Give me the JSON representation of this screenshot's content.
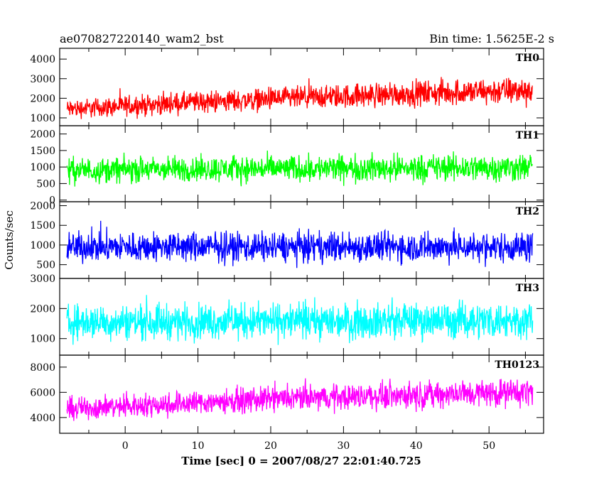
{
  "header": {
    "title": "ae070827220140_wam2_bst",
    "bin_time": "Bin time: 1.5625E-2 s"
  },
  "axes": {
    "ylabel": "Counts/sec",
    "xlabel": "Time [sec] 0 = 2007/08/27 22:01:40.725"
  },
  "chart_data": {
    "type": "line",
    "title": "ae070827220140_wam2_bst",
    "subtitle": "Bin time: 1.5625E-2 s",
    "xlabel": "Time [sec] 0 = 2007/08/27 22:01:40.725",
    "ylabel": "Counts/sec",
    "xlim": [
      -9,
      57.5
    ],
    "x_ticks": [
      0,
      10,
      20,
      30,
      40,
      50
    ],
    "x_range_data": [
      -8,
      56
    ],
    "bin_time_s": 0.015625,
    "layout": "5 stacked panels sharing x axis",
    "panels": [
      {
        "name": "TH0",
        "color": "#ff0000",
        "ylim": [
          600,
          4550
        ],
        "yticks": [
          1000,
          2000,
          3000,
          4000
        ],
        "series": {
          "x": [
            -8,
            0,
            10,
            20,
            30,
            40,
            50,
            56
          ],
          "baseline": [
            1450,
            1600,
            1800,
            1950,
            2100,
            2250,
            2350,
            2400
          ],
          "noise_half_range": [
            700,
            750,
            800,
            850,
            900,
            950,
            1000,
            1050
          ]
        }
      },
      {
        "name": "TH1",
        "color": "#00ff00",
        "ylim": [
          -50,
          2250
        ],
        "yticks": [
          0,
          500,
          1000,
          1500,
          2000
        ],
        "series": {
          "x": [
            -8,
            0,
            10,
            20,
            30,
            40,
            50,
            56
          ],
          "baseline": [
            900,
            920,
            940,
            950,
            960,
            970,
            980,
            990
          ],
          "noise_half_range": [
            550,
            560,
            570,
            580,
            590,
            600,
            610,
            620
          ]
        }
      },
      {
        "name": "TH2",
        "color": "#0000ff",
        "ylim": [
          150,
          2100
        ],
        "yticks": [
          500,
          1000,
          1500,
          2000
        ],
        "series": {
          "x": [
            -8,
            0,
            10,
            20,
            30,
            40,
            50,
            56
          ],
          "baseline": [
            950,
            950,
            950,
            950,
            950,
            950,
            950,
            950
          ],
          "noise_half_range": [
            560,
            560,
            560,
            560,
            560,
            560,
            560,
            560
          ]
        }
      },
      {
        "name": "TH3",
        "color": "#00ffff",
        "ylim": [
          450,
          3000
        ],
        "yticks": [
          1000,
          2000,
          3000
        ],
        "series": {
          "x": [
            -8,
            0,
            10,
            20,
            30,
            40,
            50,
            56
          ],
          "baseline": [
            1550,
            1560,
            1570,
            1580,
            1590,
            1600,
            1610,
            1620
          ],
          "noise_half_range": [
            850,
            850,
            860,
            860,
            870,
            870,
            880,
            880
          ]
        }
      },
      {
        "name": "TH0123",
        "color": "#ff00ff",
        "ylim": [
          2750,
          8950
        ],
        "yticks": [
          4000,
          6000,
          8000
        ],
        "series": {
          "x": [
            -8,
            0,
            10,
            20,
            30,
            40,
            50,
            56
          ],
          "baseline": [
            4700,
            4900,
            5200,
            5450,
            5650,
            5800,
            5950,
            6050
          ],
          "noise_half_range": [
            1300,
            1350,
            1400,
            1450,
            1500,
            1550,
            1600,
            1650
          ]
        }
      }
    ]
  }
}
